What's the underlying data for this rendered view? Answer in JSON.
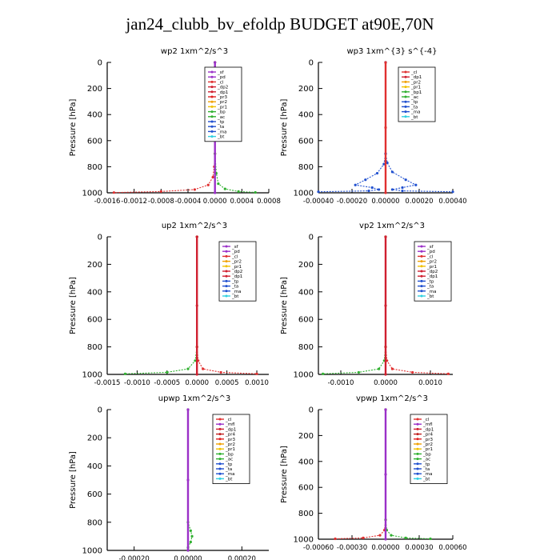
{
  "title": "jan24_clubb_bv_efoldp  BUDGET at90E,70N",
  "colors": {
    "sf": "#9b30c8",
    "pd": "#9b30c8",
    "mfl": "#9b30c8",
    "cl": "#e03030",
    "dp1": "#d02030",
    "dp2": "#d02030",
    "pr1": "#f0c000",
    "pr2": "#f0a000",
    "pr3": "#e02020",
    "pr4": "#c02020",
    "bp": "#30b030",
    "ac": "#30b030",
    "tp": "#2050d0",
    "ta": "#2050d0",
    "ma": "#2050d0",
    "bt": "#30d0e0"
  },
  "chart_data": [
    {
      "type": "line",
      "title": "wp2   1xm^2/s^3",
      "ylabel": "Pressure  [hPa]",
      "ylim": [
        1000,
        0
      ],
      "xlim": [
        -0.0016,
        0.0008
      ],
      "xticks": [
        -0.0016,
        -0.0012,
        -0.0008,
        -0.0004,
        0.0,
        0.0004,
        0.0008
      ],
      "xticklabels": [
        "-0.0016",
        "-0.0012",
        "-0.0008",
        "-0.0004",
        "0.0000",
        "0.0004",
        "0.0008"
      ],
      "yticks": [
        0,
        200,
        400,
        600,
        800,
        1000
      ],
      "legend": [
        "_sf",
        "_pd",
        "_cl",
        "_dp2",
        "_dp1",
        "_pr3",
        "_pr2",
        "_pr1",
        "_bp",
        "_ac",
        "_tp",
        "_ta",
        "_ma",
        "_bt"
      ],
      "series": [
        {
          "name": "_cl",
          "color": "#e03030",
          "values": [
            [
              0,
              0
            ],
            [
              0,
              100
            ],
            [
              0,
              200
            ],
            [
              0,
              300
            ],
            [
              0,
              400
            ],
            [
              0,
              500
            ],
            [
              0,
              600
            ],
            [
              0,
              700
            ],
            [
              -1e-05,
              800
            ],
            [
              -3e-05,
              880
            ],
            [
              -0.0001,
              940
            ],
            [
              -0.0003,
              975
            ],
            [
              -0.0008,
              990
            ],
            [
              -0.0015,
              998
            ]
          ]
        },
        {
          "name": "_pr1",
          "color": "#30b030",
          "values": [
            [
              0,
              0
            ],
            [
              0,
              400
            ],
            [
              0,
              700
            ],
            [
              2e-05,
              850
            ],
            [
              5e-05,
              930
            ],
            [
              0.00015,
              970
            ],
            [
              0.00035,
              990
            ],
            [
              0.0006,
              997
            ]
          ]
        },
        {
          "name": "_sf",
          "color": "#9b30c8",
          "values": [
            [
              0,
              0
            ],
            [
              0,
              500
            ],
            [
              0,
              1000
            ]
          ]
        }
      ]
    },
    {
      "type": "line",
      "title": "wp3   1xm^{3} s^{-4}",
      "ylabel": "Pressure  [hPa]",
      "ylim": [
        1000,
        0
      ],
      "xlim": [
        -0.0004,
        0.0004
      ],
      "xticks": [
        -0.0004,
        -0.0002,
        0.0,
        0.0002,
        0.0004
      ],
      "xticklabels": [
        "-0.00040",
        "-0.00020",
        "0.00000",
        "0.00020",
        "0.00040"
      ],
      "yticks": [
        0,
        200,
        400,
        600,
        800,
        1000
      ],
      "legend": [
        "_cl",
        "_dp1",
        "_pr2",
        "_pr1",
        "_bp1",
        "_ac",
        "_tp",
        "_ta",
        "_ma",
        "_bt"
      ],
      "series": [
        {
          "name": "_tp",
          "color": "#2050d0",
          "values": [
            [
              0,
              0
            ],
            [
              0,
              700
            ],
            [
              1e-05,
              770
            ],
            [
              4e-05,
              840
            ],
            [
              0.00012,
              900
            ],
            [
              0.00018,
              940
            ],
            [
              0.0001,
              960
            ],
            [
              4e-05,
              975
            ],
            [
              0.0001,
              985
            ],
            [
              0.0004,
              992
            ]
          ]
        },
        {
          "name": "_ta",
          "color": "#2050d0",
          "values": [
            [
              0,
              0
            ],
            [
              0,
              700
            ],
            [
              -1e-05,
              780
            ],
            [
              -5e-05,
              850
            ],
            [
              -0.00012,
              900
            ],
            [
              -0.00018,
              940
            ],
            [
              -8e-05,
              960
            ],
            [
              -4e-05,
              975
            ],
            [
              -0.0001,
              985
            ],
            [
              -0.0004,
              992
            ]
          ]
        },
        {
          "name": "_cl",
          "color": "#e03030",
          "values": [
            [
              0,
              0
            ],
            [
              0,
              500
            ],
            [
              0,
              1000
            ]
          ]
        }
      ]
    },
    {
      "type": "line",
      "title": "up2   1xm^2/s^3",
      "ylabel": "Pressure  [hPa]",
      "ylim": [
        1000,
        0
      ],
      "xlim": [
        -0.0015,
        0.0012
      ],
      "xticks": [
        -0.0015,
        -0.001,
        -0.0005,
        0.0,
        0.0005,
        0.001
      ],
      "xticklabels": [
        "-0.0015",
        "-0.0010",
        "-0.0005",
        "0.0000",
        "0.0005",
        "0.0010"
      ],
      "yticks": [
        0,
        200,
        400,
        600,
        800,
        1000
      ],
      "legend": [
        "_sf",
        "_pd",
        "_cl",
        "_pr2",
        "_pr1",
        "_dp2",
        "_dp1",
        "_tp",
        "_ta",
        "_ma",
        "_bt"
      ],
      "series": [
        {
          "name": "_pr1",
          "color": "#30b030",
          "values": [
            [
              0,
              0
            ],
            [
              0,
              800
            ],
            [
              -3e-05,
              900
            ],
            [
              -0.00015,
              960
            ],
            [
              -0.0005,
              985
            ],
            [
              -0.0012,
              996
            ]
          ]
        },
        {
          "name": "_cl",
          "color": "#e03030",
          "values": [
            [
              0,
              0
            ],
            [
              0,
              800
            ],
            [
              2e-05,
              900
            ],
            [
              0.0001,
              960
            ],
            [
              0.0004,
              985
            ],
            [
              0.001,
              996
            ]
          ]
        },
        {
          "name": "_sf",
          "color": "#d02030",
          "values": [
            [
              0,
              0
            ],
            [
              0,
              500
            ],
            [
              0,
              1000
            ]
          ]
        }
      ]
    },
    {
      "type": "line",
      "title": "vp2   1xm^2/s^3",
      "ylabel": "Pressure  [hPa]",
      "ylim": [
        1000,
        0
      ],
      "xlim": [
        -0.0015,
        0.0015
      ],
      "xticks": [
        -0.001,
        0.0,
        0.001
      ],
      "xticklabels": [
        "-0.0010",
        "0.0000",
        "0.0010"
      ],
      "yticks": [
        0,
        200,
        400,
        600,
        800,
        1000
      ],
      "legend": [
        "_sf",
        "_pd",
        "_cl",
        "_pr2",
        "_pr1",
        "_dp2",
        "_dp1",
        "_tp",
        "_ta",
        "_ma",
        "_bt"
      ],
      "series": [
        {
          "name": "_pr1",
          "color": "#30b030",
          "values": [
            [
              0,
              0
            ],
            [
              0,
              800
            ],
            [
              -3e-05,
              900
            ],
            [
              -0.00015,
              960
            ],
            [
              -0.0006,
              985
            ],
            [
              -0.0014,
              996
            ]
          ]
        },
        {
          "name": "_cl",
          "color": "#e03030",
          "values": [
            [
              0,
              0
            ],
            [
              0,
              800
            ],
            [
              3e-05,
              900
            ],
            [
              0.00015,
              960
            ],
            [
              0.0006,
              985
            ],
            [
              0.0014,
              996
            ]
          ]
        },
        {
          "name": "_sf",
          "color": "#d02030",
          "values": [
            [
              0,
              0
            ],
            [
              0,
              500
            ],
            [
              0,
              1000
            ]
          ]
        }
      ]
    },
    {
      "type": "line",
      "title": "upwp   1xm^2/s^3",
      "ylabel": "Pressure  [hPa]",
      "ylim": [
        1000,
        0
      ],
      "xlim": [
        -0.0003,
        0.0003
      ],
      "xticks": [
        -0.0002,
        0.0,
        0.0002
      ],
      "xticklabels": [
        "-0.00020",
        "0.00000",
        "0.00020"
      ],
      "yticks": [
        0,
        200,
        400,
        600,
        800,
        1000
      ],
      "legend": [
        "_cl",
        "_mfl",
        "_dp1",
        "_pr4",
        "_pr3",
        "_pr2",
        "_pr1",
        "_bp",
        "_ac",
        "_tp",
        "_ta",
        "_ma",
        "_bt"
      ],
      "series": [
        {
          "name": "_bp",
          "color": "#30b030",
          "values": [
            [
              0,
              0
            ],
            [
              0,
              800
            ],
            [
              1e-05,
              860
            ],
            [
              1.5e-05,
              900
            ],
            [
              1e-05,
              940
            ],
            [
              0,
              980
            ],
            [
              0,
              1000
            ]
          ]
        },
        {
          "name": "_cl",
          "color": "#9b30c8",
          "values": [
            [
              0,
              0
            ],
            [
              0,
              500
            ],
            [
              0,
              1000
            ]
          ]
        }
      ]
    },
    {
      "type": "line",
      "title": "vpwp   1xm^2/s^3",
      "ylabel": "Pressure  [hPa]",
      "ylim": [
        1000,
        0
      ],
      "xlim": [
        -0.0006,
        0.0006
      ],
      "xticks": [
        -0.0006,
        -0.0003,
        0.0,
        0.0003,
        0.0006
      ],
      "xticklabels": [
        "-0.00060",
        "-0.00030",
        "0.00000",
        "0.00030",
        "0.00060"
      ],
      "yticks": [
        0,
        200,
        400,
        600,
        800,
        1000
      ],
      "legend": [
        "_cl",
        "_mfl",
        "_dp1",
        "_pr4",
        "_pr3",
        "_pr2",
        "_pr1",
        "_bp",
        "_ac",
        "_tp",
        "_ta",
        "_ma",
        "_bt"
      ],
      "series": [
        {
          "name": "_pr1",
          "color": "#e03030",
          "values": [
            [
              0,
              0
            ],
            [
              0,
              850
            ],
            [
              -1e-05,
              930
            ],
            [
              -5e-05,
              970
            ],
            [
              -0.0002,
              990
            ],
            [
              -0.00045,
              997
            ]
          ]
        },
        {
          "name": "_bp",
          "color": "#30b030",
          "values": [
            [
              0,
              0
            ],
            [
              0,
              850
            ],
            [
              1e-05,
              930
            ],
            [
              5e-05,
              970
            ],
            [
              0.00018,
              990
            ],
            [
              0.0004,
              997
            ]
          ]
        },
        {
          "name": "_cl",
          "color": "#9b30c8",
          "values": [
            [
              0,
              0
            ],
            [
              0,
              500
            ],
            [
              0,
              1000
            ]
          ]
        }
      ]
    }
  ]
}
